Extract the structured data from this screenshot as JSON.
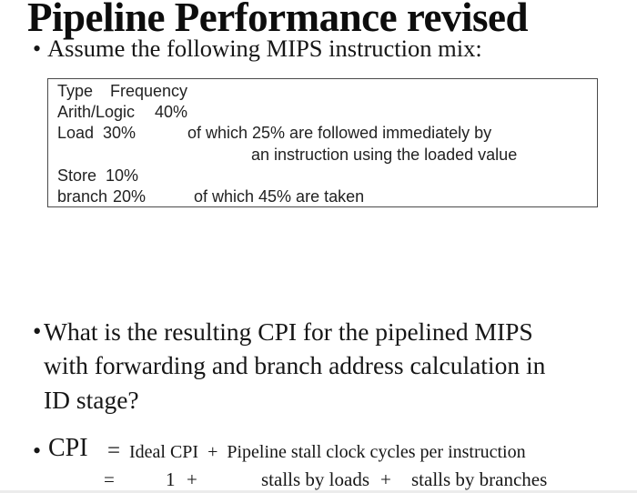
{
  "slide": {
    "title": "Pipeline Performance revised",
    "bullet_char": "•",
    "assume_bullet": "Assume the following MIPS instruction mix:",
    "mix_box": {
      "rows": [
        {
          "type": "Type",
          "freq": "Frequency"
        },
        {
          "type": "Arith/Logic",
          "freq": "40%"
        },
        {
          "type": "Load",
          "freq": "30%",
          "note": "of which 25% are followed immediately by"
        },
        {
          "note": "an instruction using the loaded value"
        },
        {
          "type": "Store",
          "freq": "10%"
        },
        {
          "type": "branch",
          "freq": "20%",
          "note": "of which 45% are taken"
        }
      ]
    },
    "question_lines": [
      "What is the resulting CPI for the pipelined MIPS",
      "with forwarding and branch address calculation in",
      "ID stage?"
    ],
    "cpi": {
      "label": "CPI",
      "equals": "=",
      "rhs": "Ideal CPI  +  Pipeline stall clock cycles per instruction",
      "line2": [
        "=",
        "1",
        "+",
        "stalls by loads",
        "+",
        "stalls by branches"
      ]
    }
  }
}
